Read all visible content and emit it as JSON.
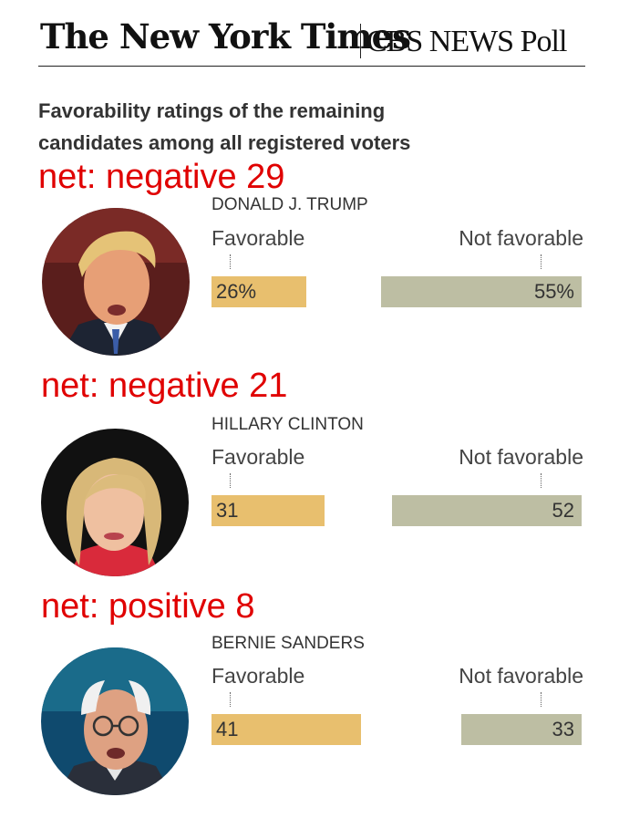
{
  "header": {
    "nyt": "The New York Times",
    "cbs": "CBS NEWS Poll"
  },
  "subtitle": "Favorability ratings of the remaining candidates among all registered voters",
  "colors": {
    "favorable": "#e8bf6e",
    "not_favorable": "#bdbea3",
    "net_annotation": "#e00000"
  },
  "labels": {
    "favorable": "Favorable",
    "not_favorable": "Not favorable"
  },
  "candidates": [
    {
      "name": "DONALD J. TRUMP",
      "net": "net: negative 29",
      "favorable": "26%",
      "not_favorable": "55%",
      "photo": "trump-photo"
    },
    {
      "name": "HILLARY CLINTON",
      "net": "net: negative 21",
      "favorable": "31",
      "not_favorable": "52",
      "photo": "clinton-photo"
    },
    {
      "name": "BERNIE SANDERS",
      "net": "net: positive 8",
      "favorable": "41",
      "not_favorable": "33",
      "photo": "sanders-photo"
    }
  ],
  "chart_data": {
    "type": "bar",
    "title": "Favorability ratings of the remaining candidates among all registered voters",
    "categories": [
      "DONALD J. TRUMP",
      "HILLARY CLINTON",
      "BERNIE SANDERS"
    ],
    "series": [
      {
        "name": "Favorable",
        "values": [
          26,
          31,
          41
        ]
      },
      {
        "name": "Not favorable",
        "values": [
          55,
          52,
          33
        ]
      }
    ],
    "annotations": [
      "net: negative 29",
      "net: negative 21",
      "net: positive 8"
    ],
    "unit": "%"
  }
}
